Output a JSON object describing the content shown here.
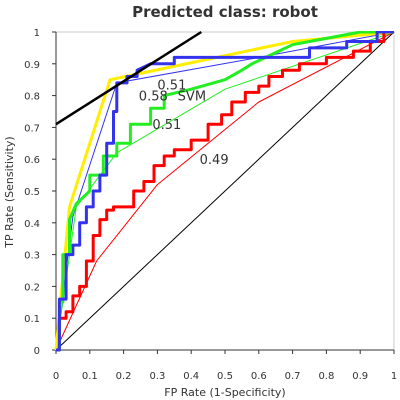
{
  "chart_data": {
    "type": "line",
    "title": "Predicted class: robot",
    "xlabel": "FP Rate (1-Specificity)",
    "ylabel": "TP Rate (Sensitivity)",
    "xlim": [
      0,
      1
    ],
    "ylim": [
      0,
      1
    ],
    "xticks": [
      0,
      0.1,
      0.2,
      0.3,
      0.4,
      0.5,
      0.6,
      0.7,
      0.8,
      0.9,
      1
    ],
    "yticks": [
      0,
      0.1,
      0.2,
      0.3,
      0.4,
      0.5,
      0.6,
      0.7,
      0.8,
      0.9,
      1
    ],
    "grid": false,
    "colors": {
      "red": "#ff0000",
      "green": "#22ee22",
      "blue": "#3333ee",
      "yellow": "#ffee00",
      "diagonal": "#000000",
      "tangent": "#000000"
    },
    "series": [
      {
        "key": "red",
        "x": [
          0,
          0.01,
          0.01,
          0.03,
          0.03,
          0.05,
          0.05,
          0.07,
          0.07,
          0.09,
          0.09,
          0.11,
          0.11,
          0.13,
          0.13,
          0.15,
          0.15,
          0.17,
          0.17,
          0.2,
          0.23,
          0.23,
          0.26,
          0.26,
          0.29,
          0.29,
          0.32,
          0.32,
          0.35,
          0.35,
          0.4,
          0.4,
          0.45,
          0.45,
          0.49,
          0.49,
          0.52,
          0.52,
          0.56,
          0.56,
          0.6,
          0.6,
          0.63,
          0.63,
          0.67,
          0.67,
          0.72,
          0.72,
          0.8,
          0.8,
          0.88,
          0.88,
          0.93,
          0.93,
          0.97,
          0.97,
          1
        ],
        "y": [
          0,
          0,
          0.1,
          0.1,
          0.12,
          0.12,
          0.17,
          0.17,
          0.2,
          0.2,
          0.28,
          0.28,
          0.36,
          0.36,
          0.41,
          0.41,
          0.44,
          0.44,
          0.45,
          0.45,
          0.45,
          0.5,
          0.5,
          0.53,
          0.53,
          0.58,
          0.58,
          0.61,
          0.61,
          0.63,
          0.63,
          0.66,
          0.66,
          0.71,
          0.71,
          0.74,
          0.74,
          0.78,
          0.78,
          0.81,
          0.81,
          0.83,
          0.83,
          0.86,
          0.86,
          0.88,
          0.88,
          0.9,
          0.9,
          0.92,
          0.92,
          0.94,
          0.94,
          0.97,
          0.97,
          1,
          1
        ]
      },
      {
        "key": "green",
        "x": [
          0,
          0.01,
          0.01,
          0.02,
          0.02,
          0.04,
          0.04,
          0.06,
          0.1,
          0.1,
          0.14,
          0.14,
          0.18,
          0.18,
          0.22,
          0.22,
          0.28,
          0.28,
          0.32,
          0.32,
          0.4,
          0.5,
          0.55,
          0.58,
          0.62,
          0.7,
          0.8,
          0.9,
          1
        ],
        "y": [
          0,
          0,
          0.15,
          0.15,
          0.3,
          0.3,
          0.41,
          0.46,
          0.5,
          0.55,
          0.55,
          0.61,
          0.61,
          0.65,
          0.65,
          0.71,
          0.71,
          0.76,
          0.76,
          0.8,
          0.82,
          0.85,
          0.88,
          0.9,
          0.92,
          0.96,
          0.98,
          1,
          1
        ]
      },
      {
        "key": "blue",
        "x": [
          0,
          0.01,
          0.01,
          0.03,
          0.03,
          0.05,
          0.05,
          0.07,
          0.07,
          0.09,
          0.09,
          0.11,
          0.11,
          0.13,
          0.13,
          0.15,
          0.15,
          0.17,
          0.17,
          0.18,
          0.18,
          0.21,
          0.21,
          0.24,
          0.24,
          0.28,
          0.35,
          0.35,
          0.5,
          0.5,
          0.75,
          0.75,
          0.86,
          0.86,
          0.95,
          0.95,
          1
        ],
        "y": [
          0,
          0,
          0.16,
          0.16,
          0.3,
          0.3,
          0.33,
          0.33,
          0.4,
          0.4,
          0.45,
          0.45,
          0.5,
          0.5,
          0.55,
          0.55,
          0.65,
          0.65,
          0.75,
          0.75,
          0.84,
          0.84,
          0.86,
          0.86,
          0.88,
          0.9,
          0.9,
          0.92,
          0.92,
          0.92,
          0.92,
          0.95,
          0.95,
          0.97,
          0.97,
          1,
          1
        ]
      },
      {
        "key": "yellow",
        "x": [
          0,
          0.04,
          0.16,
          0.7,
          1
        ],
        "y": [
          0,
          0.45,
          0.85,
          0.97,
          1
        ]
      },
      {
        "key": "thin-blue",
        "x": [
          0,
          0.05,
          0.18,
          0.6,
          1
        ],
        "y": [
          0,
          0.42,
          0.84,
          0.92,
          1
        ]
      },
      {
        "key": "thin-green",
        "x": [
          0,
          0.06,
          0.18,
          0.5,
          1
        ],
        "y": [
          0,
          0.45,
          0.62,
          0.82,
          1
        ]
      },
      {
        "key": "thin-red",
        "x": [
          0,
          0.12,
          0.3,
          0.6,
          1
        ],
        "y": [
          0,
          0.28,
          0.52,
          0.78,
          1
        ]
      }
    ],
    "diagonal": {
      "x": [
        0,
        1
      ],
      "y": [
        0,
        1
      ]
    },
    "tangent": {
      "x": [
        0,
        0.43
      ],
      "y": [
        0.71,
        1.0
      ]
    },
    "annotations": [
      {
        "text": "0.51",
        "x": 0.3,
        "y": 0.835
      },
      {
        "text": "0.58",
        "x": 0.245,
        "y": 0.8
      },
      {
        "text": "SVM",
        "x": 0.36,
        "y": 0.8
      },
      {
        "text": "0.51",
        "x": 0.285,
        "y": 0.71
      },
      {
        "text": "0.49",
        "x": 0.425,
        "y": 0.6
      }
    ]
  }
}
